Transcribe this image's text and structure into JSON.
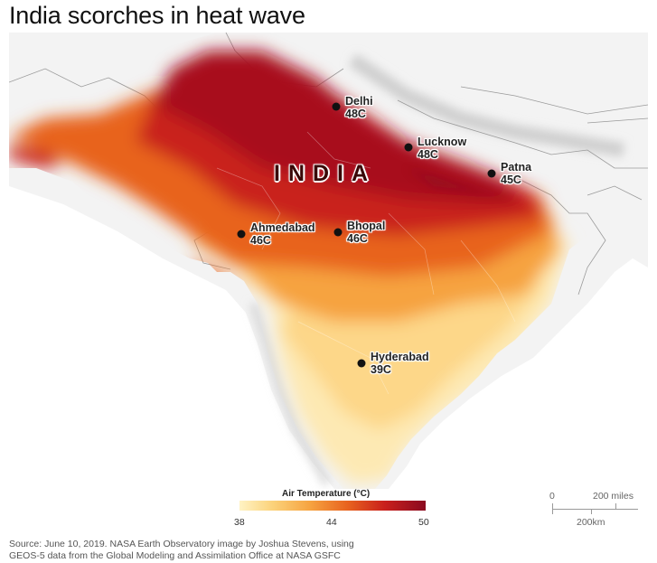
{
  "title": "India scorches in heat wave",
  "country_label": "INDIA",
  "cities": [
    {
      "name": "Delhi",
      "temp": "48C"
    },
    {
      "name": "Lucknow",
      "temp": "48C"
    },
    {
      "name": "Patna",
      "temp": "45C"
    },
    {
      "name": "Ahmedabad",
      "temp": "46C"
    },
    {
      "name": "Bhopal",
      "temp": "46C"
    },
    {
      "name": "Hyderabad",
      "temp": "39C"
    }
  ],
  "legend": {
    "title": "Air Temperature (°C)",
    "min": "38",
    "mid": "44",
    "max": "50",
    "colors": [
      "#fff3c4",
      "#fbd27a",
      "#f6a340",
      "#e8631f",
      "#c9201c",
      "#8a0a20"
    ]
  },
  "scale": {
    "zero": "0",
    "miles": "200 miles",
    "km": "200km"
  },
  "source": {
    "line1": "Source: June 10, 2019. NASA Earth Observatory image by Joshua Stevens, using",
    "line2": "GEOS-5 data from the Global Modeling and Assimilation Office at NASA GSFC"
  }
}
